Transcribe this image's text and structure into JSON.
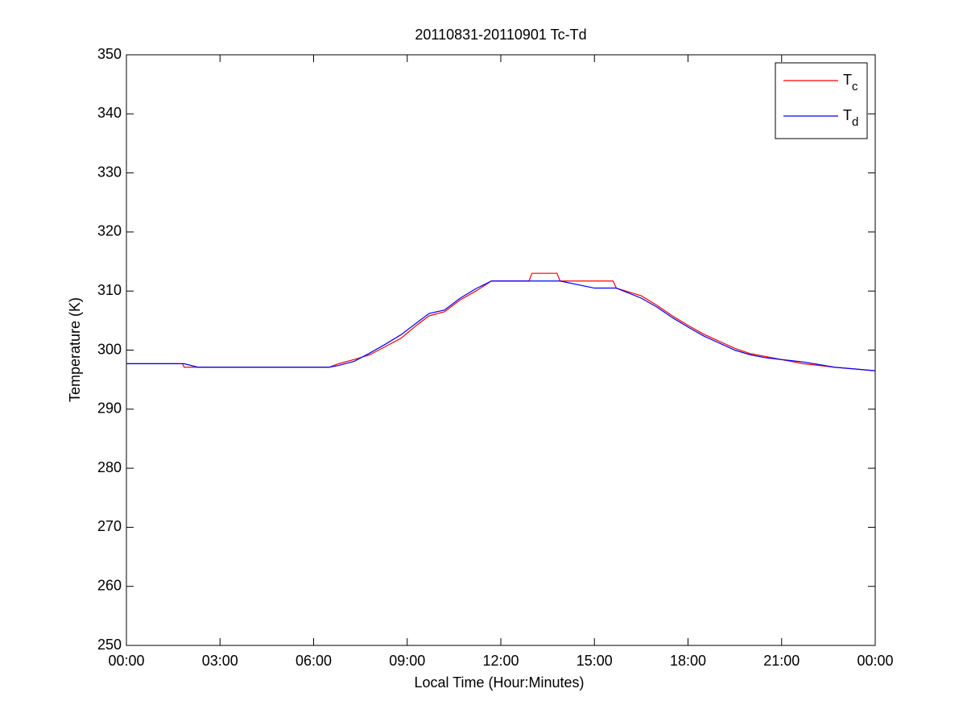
{
  "chart_data": {
    "type": "line",
    "title": "20110831-20110901 Tc-Td",
    "x_label": "Local Time (Hour:Minutes)",
    "y_label": "Temperature (K)",
    "x": [
      0,
      1.8,
      1.85,
      2.3,
      6.5,
      6.8,
      7.3,
      7.8,
      8.3,
      8.8,
      9.3,
      9.7,
      10.2,
      10.7,
      11.2,
      11.7,
      12.9,
      13.0,
      13.8,
      13.9,
      15.0,
      15.6,
      15.7,
      16.5,
      17.0,
      17.5,
      18.0,
      18.5,
      19.0,
      19.5,
      20.0,
      20.5,
      21.0,
      21.7,
      22.7,
      24
    ],
    "series": [
      {
        "name": "Tc",
        "color": "#ff0000",
        "values": [
          297.7,
          297.7,
          297.1,
          297.1,
          297.1,
          297.7,
          298.4,
          299.2,
          300.6,
          302.0,
          304.2,
          305.8,
          306.5,
          308.5,
          310.0,
          311.7,
          311.7,
          313.0,
          313.0,
          311.7,
          311.7,
          311.7,
          310.5,
          309.2,
          307.6,
          305.8,
          304.2,
          302.7,
          301.5,
          300.3,
          299.4,
          298.9,
          298.4,
          297.7,
          297.1,
          296.5
        ]
      },
      {
        "name": "Td",
        "color": "#0000ff",
        "values": [
          297.7,
          297.7,
          297.7,
          297.1,
          297.1,
          297.4,
          298.1,
          299.5,
          301.0,
          302.6,
          304.6,
          306.2,
          306.8,
          308.8,
          310.4,
          311.7,
          311.7,
          311.7,
          311.7,
          311.7,
          310.5,
          310.5,
          310.5,
          308.8,
          307.3,
          305.5,
          303.9,
          302.4,
          301.2,
          300.0,
          299.2,
          298.7,
          298.4,
          298.0,
          297.1,
          296.5
        ]
      }
    ],
    "xlim": [
      0,
      24
    ],
    "xticks": [
      {
        "value": 0,
        "label": "00:00"
      },
      {
        "value": 3,
        "label": "03:00"
      },
      {
        "value": 6,
        "label": "06:00"
      },
      {
        "value": 9,
        "label": "09:00"
      },
      {
        "value": 12,
        "label": "12:00"
      },
      {
        "value": 15,
        "label": "15:00"
      },
      {
        "value": 18,
        "label": "18:00"
      },
      {
        "value": 21,
        "label": "21:00"
      },
      {
        "value": 24,
        "label": "00:00"
      }
    ],
    "ylim": [
      250,
      350
    ],
    "yticks": [
      250,
      260,
      270,
      280,
      290,
      300,
      310,
      320,
      330,
      340,
      350
    ],
    "grid": false,
    "legend": "upper right"
  }
}
